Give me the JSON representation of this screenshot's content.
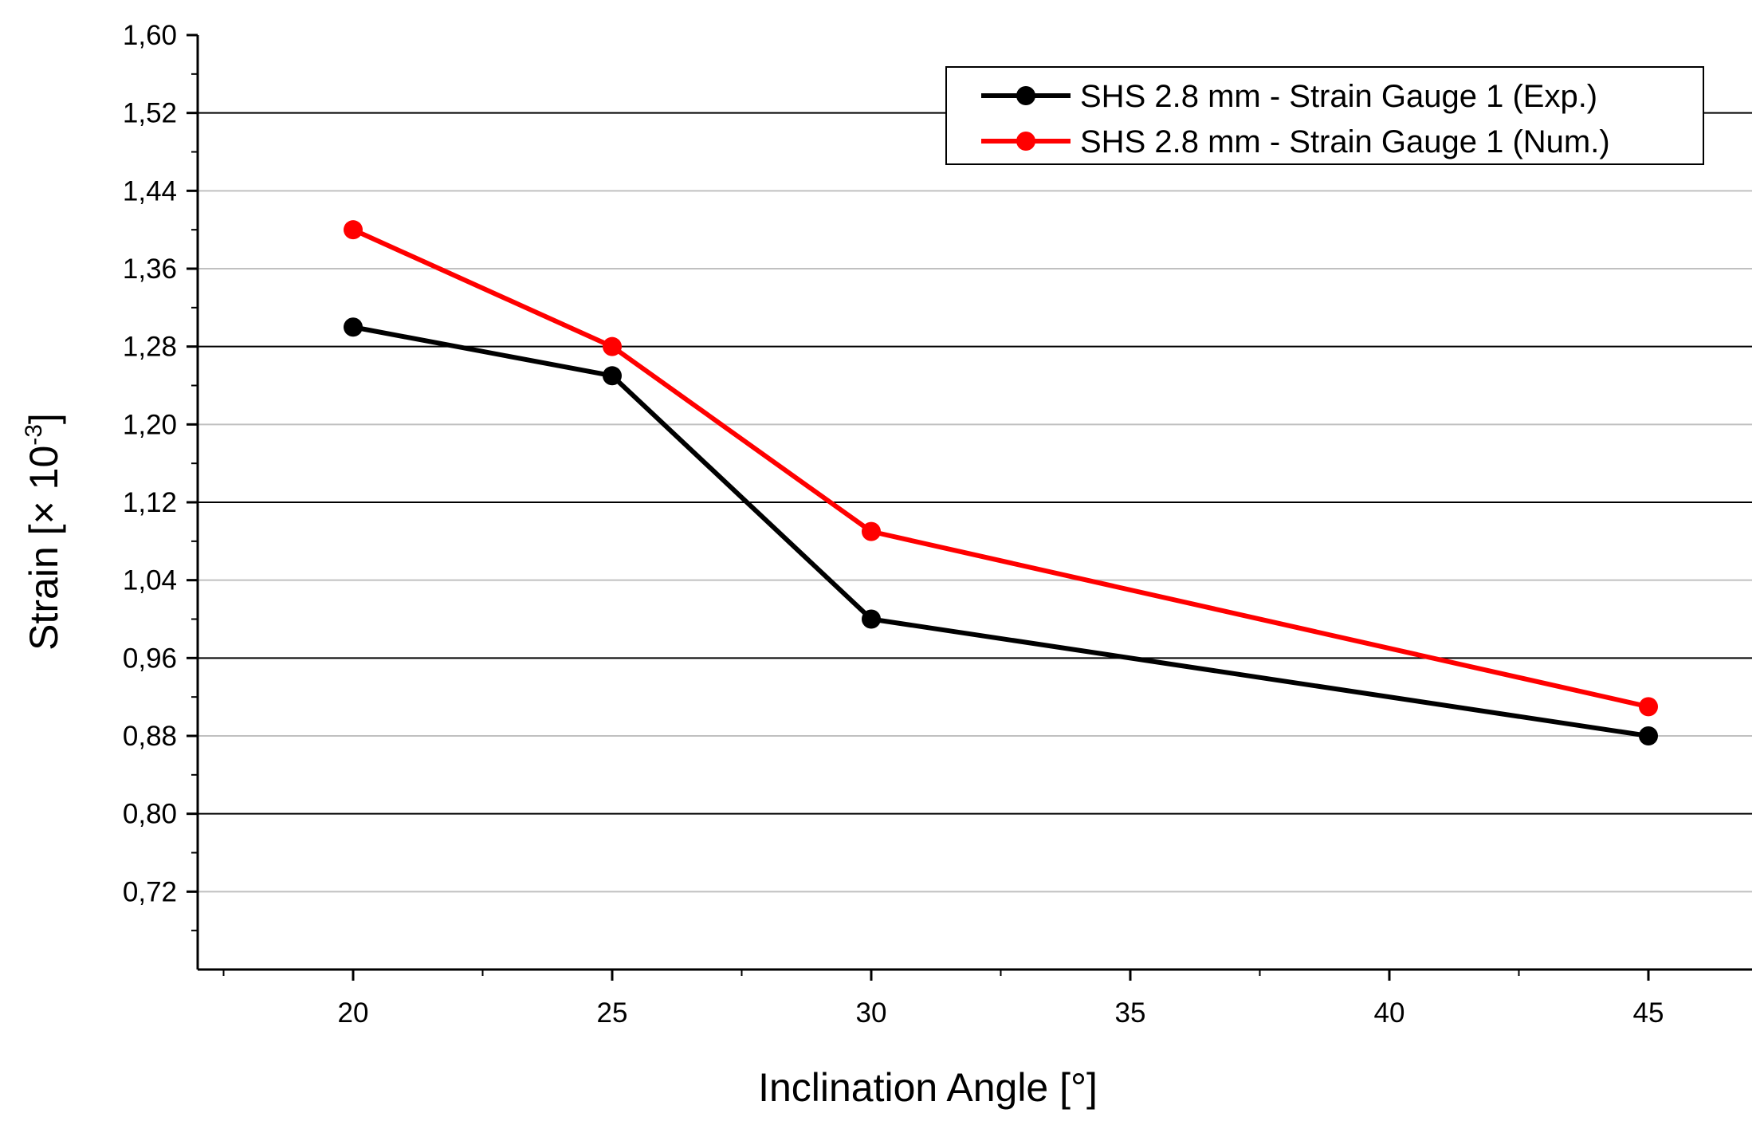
{
  "chart_data": {
    "type": "line",
    "title": "",
    "xlabel": "Inclination Angle [°]",
    "ylabel": {
      "prefix": "Strain [× 10",
      "exponent": "-3",
      "suffix": "]"
    },
    "xlim": [
      17,
      47
    ],
    "ylim": [
      0.64,
      1.6
    ],
    "x_ticks": [
      20,
      25,
      30,
      35,
      40,
      45
    ],
    "x_tick_labels": [
      "20",
      "25",
      "30",
      "35",
      "40",
      "45"
    ],
    "y_ticks": [
      0.72,
      0.8,
      0.88,
      0.96,
      1.04,
      1.12,
      1.2,
      1.28,
      1.36,
      1.44,
      1.52,
      1.6
    ],
    "y_tick_labels": [
      "0,72",
      "0,80",
      "0,88",
      "0,96",
      "1,04",
      "1,12",
      "1,20",
      "1,28",
      "1,36",
      "1,44",
      "1,52",
      "1,60"
    ],
    "grid": {
      "major_color": "#000000",
      "minor_color": "#c0c0c0",
      "major_values": [
        0.8,
        0.96,
        1.12,
        1.28,
        1.52
      ],
      "minor_values": [
        0.72,
        0.88,
        1.04,
        1.2,
        1.36,
        1.44
      ]
    },
    "legend_position": "top-right",
    "series": [
      {
        "name": "SHS 2.8 mm - Strain Gauge 1 (Exp.)",
        "color": "#000000",
        "x": [
          20,
          25,
          30,
          45
        ],
        "y": [
          1.3,
          1.25,
          1.0,
          0.88
        ]
      },
      {
        "name": "SHS 2.8 mm - Strain Gauge 1 (Num.)",
        "color": "#ff0000",
        "x": [
          20,
          25,
          30,
          45
        ],
        "y": [
          1.4,
          1.28,
          1.09,
          0.91
        ]
      }
    ]
  }
}
